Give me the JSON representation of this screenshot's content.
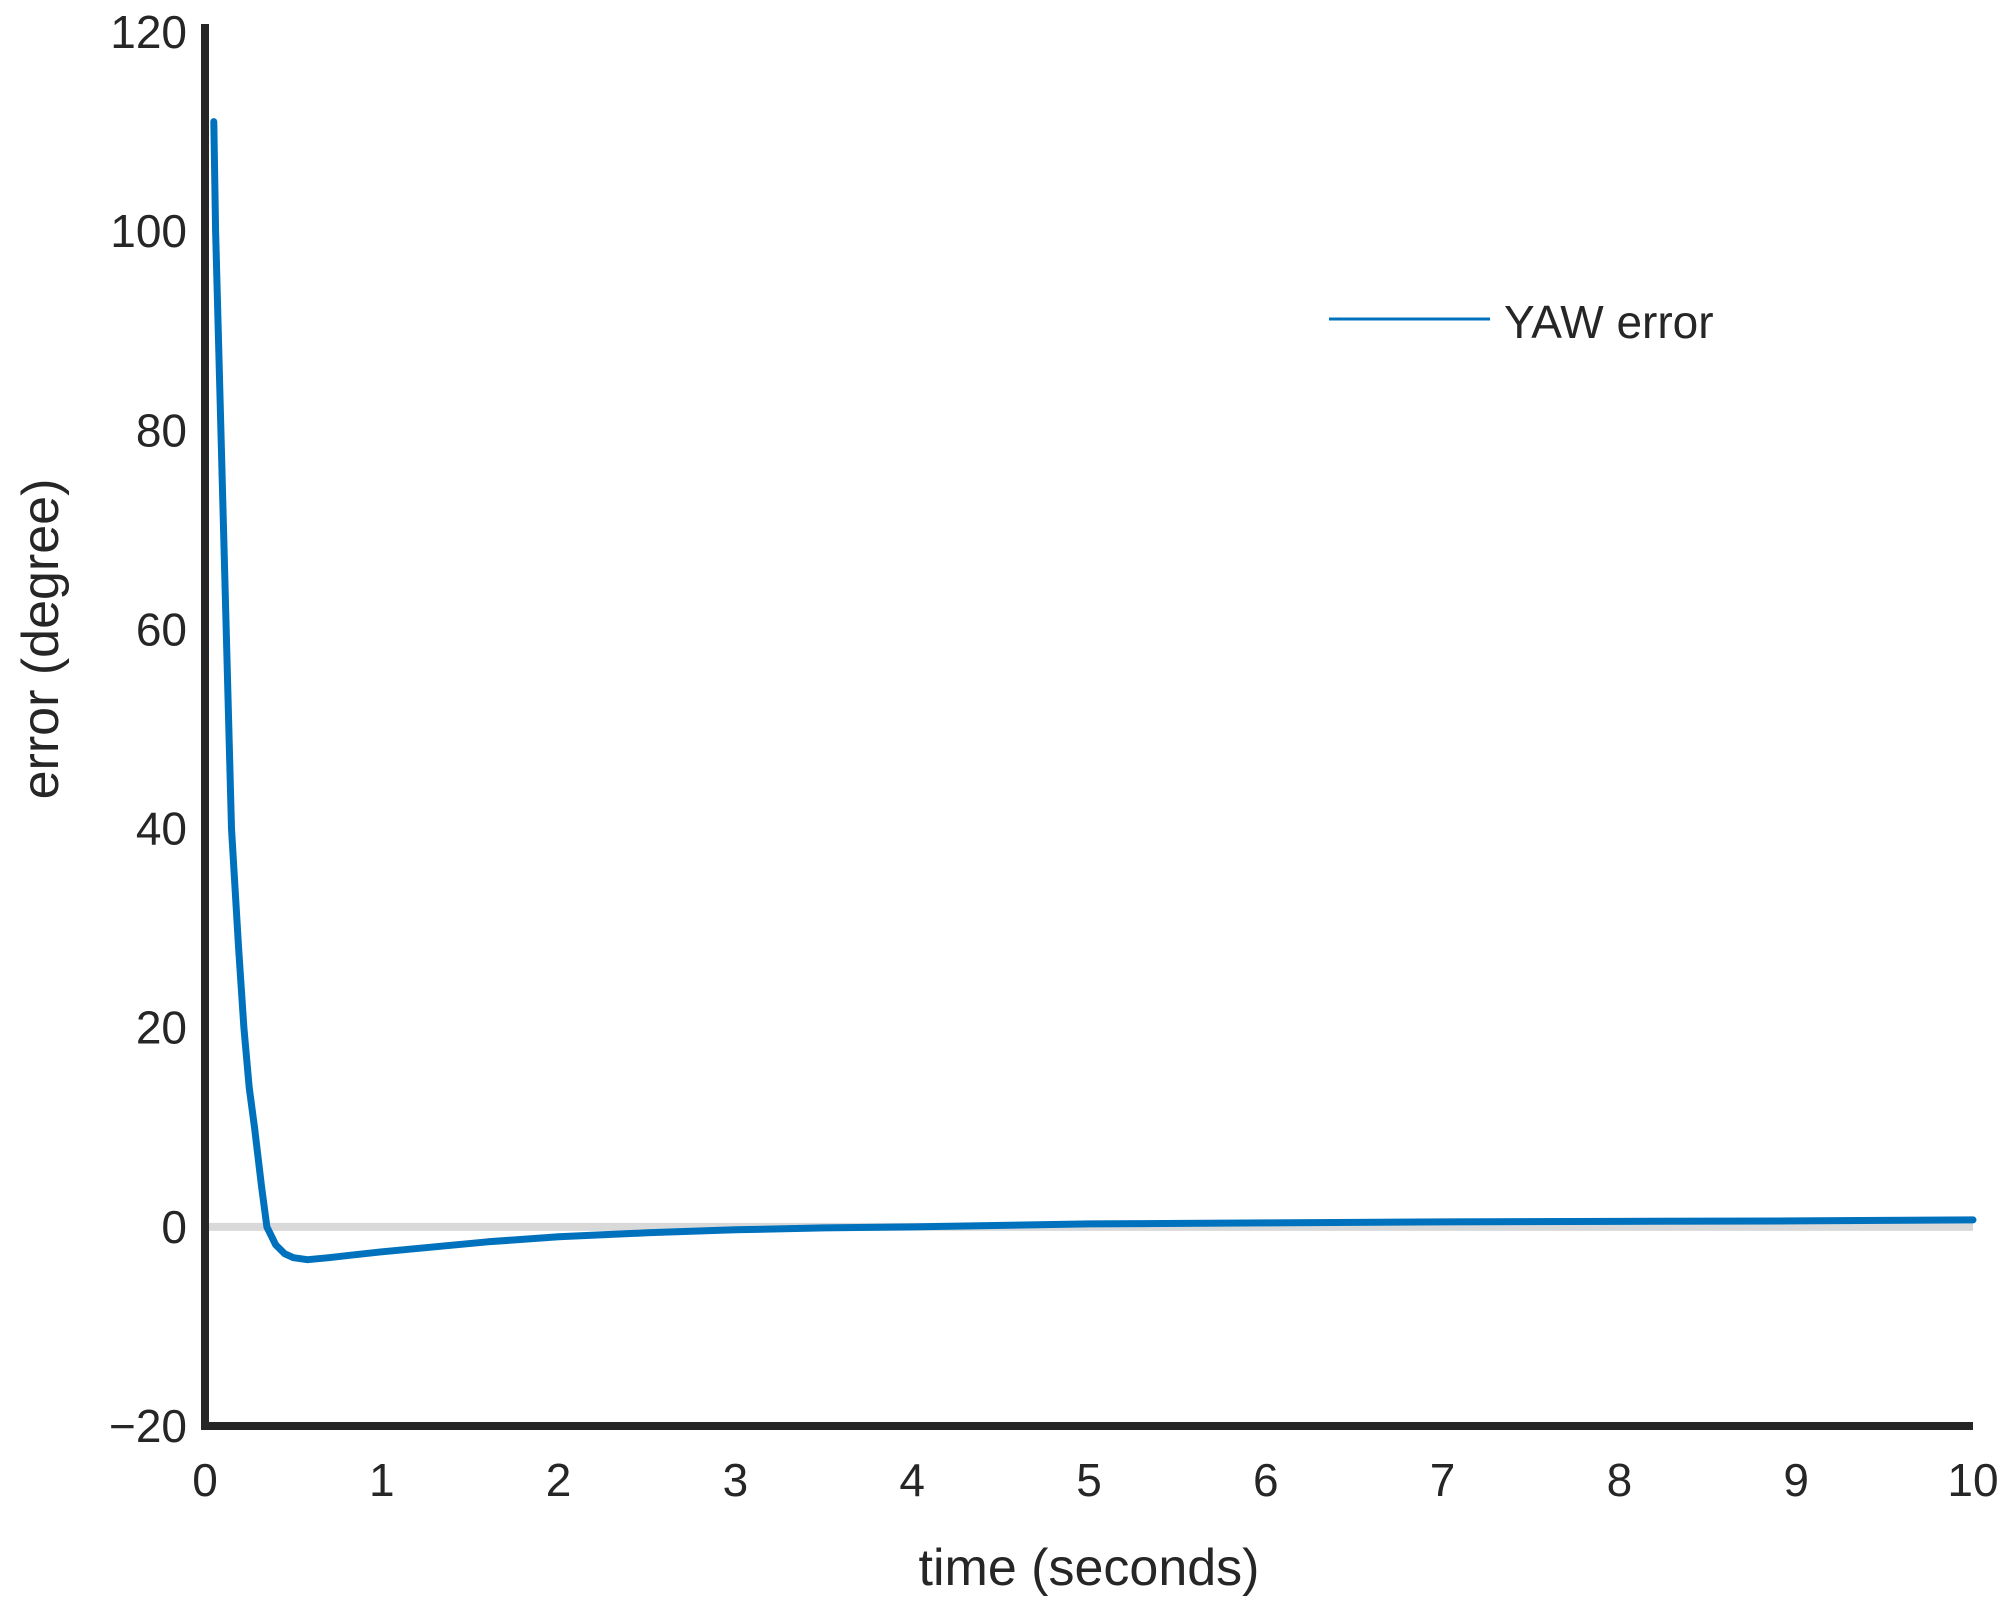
{
  "chart_data": {
    "type": "line",
    "title": "",
    "xlabel": "time (seconds)",
    "ylabel": "error (degree)",
    "xlim": [
      0,
      10
    ],
    "ylim": [
      -20,
      120
    ],
    "xticks": [
      0,
      1,
      2,
      3,
      4,
      5,
      6,
      7,
      8,
      9,
      10
    ],
    "yticks": [
      -20,
      0,
      20,
      40,
      60,
      80,
      100,
      120
    ],
    "grid": false,
    "legend_position": "top-right",
    "reference_line_y": 0,
    "colors": {
      "series": "#0072BD",
      "reference": "#d9d9d9",
      "axis": "#262626"
    },
    "series": [
      {
        "name": "YAW error",
        "x": [
          0.05,
          0.06,
          0.09,
          0.12,
          0.15,
          0.19,
          0.22,
          0.25,
          0.28,
          0.32,
          0.35,
          0.4,
          0.45,
          0.5,
          0.58,
          0.7,
          0.85,
          1,
          1.3,
          1.6,
          2,
          2.5,
          3,
          3.5,
          4,
          5,
          6,
          7,
          8,
          9,
          10
        ],
        "y": [
          111,
          100,
          80,
          60,
          40,
          28,
          20,
          14,
          10,
          4,
          0,
          -1.8,
          -2.7,
          -3.1,
          -3.3,
          -3.1,
          -2.8,
          -2.5,
          -2,
          -1.5,
          -1.0,
          -0.6,
          -0.3,
          -0.1,
          0,
          0.3,
          0.4,
          0.5,
          0.55,
          0.6,
          0.7
        ]
      }
    ]
  }
}
